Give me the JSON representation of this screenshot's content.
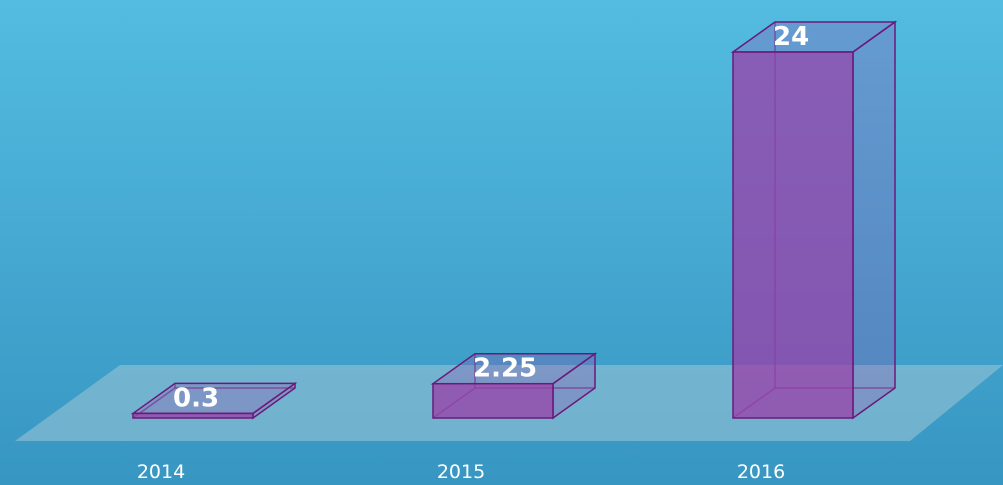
{
  "chart_data": {
    "type": "bar3d",
    "categories": [
      "2014",
      "2015",
      "2016"
    ],
    "values": [
      0.3,
      2.25,
      24
    ],
    "color": "#9b3fa8"
  }
}
